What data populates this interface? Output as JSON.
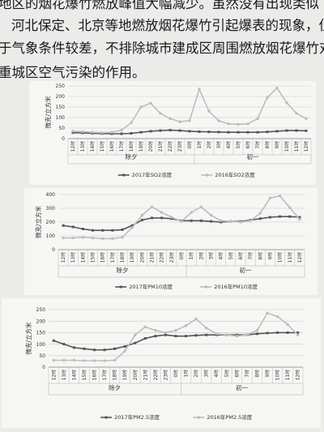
{
  "paragraph": {
    "line1": "地区的烟花爆竹燃放峰值大幅减少。虽然没有出现类似",
    "line2": "河北保定、北京等地燃放烟花爆竹引起爆表的现象，但由",
    "line3": "于气象条件较差，不排除城市建成区周围燃放烟花爆竹对加",
    "line4": "重城区空气污染的作用。"
  },
  "charts_common": {
    "ylabel": "微克/立方米",
    "x_ticks": [
      "12时",
      "13时",
      "14时",
      "15时",
      "16时",
      "17时",
      "18时",
      "19时",
      "20时",
      "21时",
      "22时",
      "23时",
      "0时",
      "1时",
      "2时",
      "3时",
      "4时",
      "5时",
      "6时",
      "7时",
      "8时",
      "9时",
      "10时",
      "11时",
      "12时"
    ],
    "group_labels": [
      "除夕",
      "初一"
    ]
  },
  "colors": {
    "series_2017": "#555555",
    "series_2016": "#bdbdbd",
    "grid": "#c9c9c9"
  },
  "chart_data": [
    {
      "type": "line",
      "ylim": [
        0,
        250
      ],
      "yticks": [
        0,
        50,
        100,
        150,
        200,
        250
      ],
      "categories": [
        "12时",
        "13时",
        "14时",
        "15时",
        "16时",
        "17时",
        "18时",
        "19时",
        "20时",
        "21时",
        "22时",
        "23时",
        "0时",
        "1时",
        "2时",
        "3时",
        "4时",
        "5时",
        "6时",
        "7时",
        "8时",
        "9时",
        "10时",
        "11时",
        "12时"
      ],
      "series": [
        {
          "name": "2017年SO2浓度",
          "values": [
            28,
            27,
            25,
            24,
            23,
            23,
            25,
            30,
            35,
            38,
            40,
            38,
            35,
            33,
            32,
            31,
            30,
            30,
            30,
            30,
            32,
            35,
            38,
            38,
            37
          ]
        },
        {
          "name": "2016年SO2浓度",
          "values": [
            35,
            33,
            30,
            28,
            30,
            40,
            75,
            150,
            168,
            120,
            95,
            80,
            85,
            235,
            130,
            85,
            70,
            68,
            70,
            95,
            195,
            240,
            170,
            120,
            95
          ]
        }
      ]
    },
    {
      "type": "line",
      "ylim": [
        0,
        400
      ],
      "yticks": [
        0,
        100,
        200,
        300,
        400
      ],
      "categories": [
        "12时",
        "13时",
        "14时",
        "15时",
        "16时",
        "17时",
        "18时",
        "19时",
        "20时",
        "21时",
        "22时",
        "23时",
        "0时",
        "1时",
        "2时",
        "3时",
        "4时",
        "5时",
        "6时",
        "7时",
        "8时",
        "9时",
        "10时",
        "11时",
        "12时"
      ],
      "series": [
        {
          "name": "2017年PM10浓度",
          "values": [
            175,
            165,
            150,
            140,
            140,
            140,
            145,
            175,
            215,
            230,
            230,
            225,
            210,
            210,
            210,
            205,
            200,
            205,
            205,
            215,
            225,
            235,
            240,
            240,
            235
          ]
        },
        {
          "name": "2016年PM10浓度",
          "values": [
            85,
            85,
            90,
            85,
            80,
            80,
            90,
            160,
            250,
            310,
            270,
            235,
            205,
            270,
            310,
            250,
            210,
            205,
            200,
            210,
            265,
            375,
            390,
            305,
            220
          ]
        }
      ]
    },
    {
      "type": "line",
      "ylim": [
        0,
        250
      ],
      "yticks": [
        0,
        50,
        100,
        150,
        200,
        250
      ],
      "categories": [
        "12时",
        "13时",
        "14时",
        "15时",
        "16时",
        "17时",
        "18时",
        "19时",
        "20时",
        "21时",
        "22时",
        "23时",
        "0时",
        "1时",
        "2时",
        "3时",
        "4时",
        "5时",
        "6时",
        "7时",
        "8时",
        "9时",
        "10时",
        "11时",
        "12时"
      ],
      "series": [
        {
          "name": "2017年PM2.5浓度",
          "values": [
            115,
            100,
            85,
            80,
            75,
            75,
            80,
            90,
            105,
            125,
            135,
            140,
            135,
            135,
            138,
            140,
            140,
            140,
            140,
            140,
            145,
            148,
            150,
            150,
            150
          ]
        },
        {
          "name": "2016年PM2.5浓度",
          "values": [
            30,
            30,
            30,
            28,
            28,
            28,
            30,
            70,
            140,
            175,
            160,
            150,
            160,
            180,
            210,
            170,
            145,
            140,
            135,
            140,
            160,
            235,
            220,
            185,
            140
          ]
        }
      ]
    }
  ]
}
